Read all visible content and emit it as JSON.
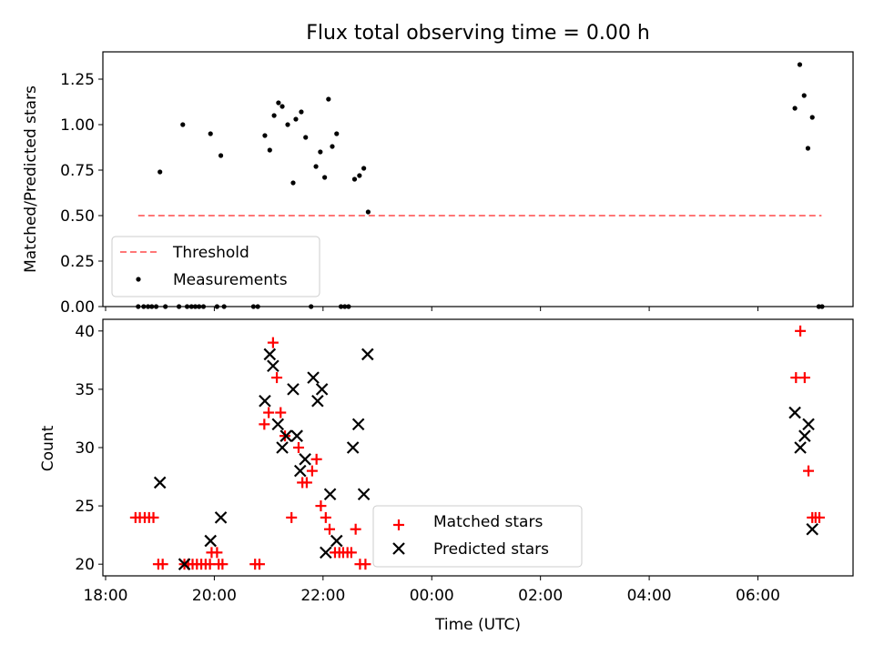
{
  "chart_data": [
    {
      "type": "scatter",
      "title": "Flux total observing time = 0.00 h",
      "ylabel": "Matched/Predicted stars",
      "xlabel": "",
      "xlim_hours": [
        17.95,
        31.75
      ],
      "ylim": [
        0,
        1.4
      ],
      "yticks": [
        0.0,
        0.25,
        0.5,
        0.75,
        1.0,
        1.25
      ],
      "ytick_labels": [
        "0.00",
        "0.25",
        "0.50",
        "0.75",
        "1.00",
        "1.25"
      ],
      "legend_position": "lower-left",
      "legend": {
        "threshold_label": "Threshold",
        "measurements_label": "Measurements"
      },
      "threshold": {
        "value": 0.5,
        "x_start": 18.6,
        "x_end": 31.17,
        "color": "#ff7777"
      },
      "series": [
        {
          "name": "Measurements",
          "color": "#000000",
          "points": [
            [
              18.6,
              0
            ],
            [
              18.7,
              0
            ],
            [
              18.78,
              0
            ],
            [
              18.85,
              0
            ],
            [
              18.93,
              0
            ],
            [
              19.0,
              0.74
            ],
            [
              19.1,
              0
            ],
            [
              19.35,
              0
            ],
            [
              19.42,
              1.0
            ],
            [
              19.5,
              0
            ],
            [
              19.58,
              0
            ],
            [
              19.65,
              0
            ],
            [
              19.72,
              0
            ],
            [
              19.8,
              0
            ],
            [
              19.93,
              0.95
            ],
            [
              20.05,
              0
            ],
            [
              20.12,
              0.83
            ],
            [
              20.18,
              0
            ],
            [
              20.72,
              0
            ],
            [
              20.8,
              0
            ],
            [
              20.93,
              0.94
            ],
            [
              21.02,
              0.86
            ],
            [
              21.1,
              1.05
            ],
            [
              21.18,
              1.12
            ],
            [
              21.25,
              1.1
            ],
            [
              21.35,
              1.0
            ],
            [
              21.45,
              0.68
            ],
            [
              21.5,
              1.03
            ],
            [
              21.6,
              1.07
            ],
            [
              21.68,
              0.93
            ],
            [
              21.78,
              0
            ],
            [
              21.87,
              0.77
            ],
            [
              21.95,
              0.85
            ],
            [
              22.03,
              0.71
            ],
            [
              22.1,
              1.14
            ],
            [
              22.17,
              0.88
            ],
            [
              22.25,
              0.95
            ],
            [
              22.33,
              0
            ],
            [
              22.4,
              0
            ],
            [
              22.47,
              0
            ],
            [
              22.58,
              0.7
            ],
            [
              22.67,
              0.72
            ],
            [
              22.75,
              0.76
            ],
            [
              22.83,
              0.52
            ],
            [
              30.68,
              1.09
            ],
            [
              30.77,
              1.33
            ],
            [
              30.85,
              1.16
            ],
            [
              30.92,
              0.87
            ],
            [
              31.0,
              1.04
            ],
            [
              31.12,
              0
            ],
            [
              31.18,
              0
            ]
          ]
        }
      ]
    },
    {
      "type": "scatter",
      "title": "",
      "ylabel": "Count",
      "xlabel": "Time (UTC)",
      "xlim_hours": [
        17.95,
        31.75
      ],
      "ylim": [
        19,
        41
      ],
      "yticks": [
        20,
        25,
        30,
        35,
        40
      ],
      "ytick_labels": [
        "20",
        "25",
        "30",
        "35",
        "40"
      ],
      "xticks_hours": [
        18,
        20,
        22,
        24,
        26,
        28,
        30
      ],
      "xtick_labels": [
        "18:00",
        "20:00",
        "22:00",
        "00:00",
        "02:00",
        "04:00",
        "06:00"
      ],
      "legend_position": "lower-center",
      "series": [
        {
          "name": "Matched stars",
          "marker": "plus",
          "color": "#ff0000",
          "points": [
            [
              18.55,
              24
            ],
            [
              18.63,
              24
            ],
            [
              18.72,
              24
            ],
            [
              18.8,
              24
            ],
            [
              18.88,
              24
            ],
            [
              18.97,
              20
            ],
            [
              19.05,
              20
            ],
            [
              19.45,
              20
            ],
            [
              19.52,
              20
            ],
            [
              19.6,
              20
            ],
            [
              19.68,
              20
            ],
            [
              19.76,
              20
            ],
            [
              19.84,
              20
            ],
            [
              19.92,
              20
            ],
            [
              19.95,
              21
            ],
            [
              20.05,
              21
            ],
            [
              20.08,
              20
            ],
            [
              20.15,
              20
            ],
            [
              20.75,
              20
            ],
            [
              20.83,
              20
            ],
            [
              20.92,
              32
            ],
            [
              21.0,
              33
            ],
            [
              21.08,
              39
            ],
            [
              21.15,
              36
            ],
            [
              21.22,
              33
            ],
            [
              21.3,
              31
            ],
            [
              21.42,
              24
            ],
            [
              21.55,
              30
            ],
            [
              21.62,
              27
            ],
            [
              21.7,
              27
            ],
            [
              21.8,
              28
            ],
            [
              21.88,
              29
            ],
            [
              21.96,
              25
            ],
            [
              22.05,
              24
            ],
            [
              22.12,
              23
            ],
            [
              22.22,
              21
            ],
            [
              22.3,
              21
            ],
            [
              22.37,
              21
            ],
            [
              22.45,
              21
            ],
            [
              22.52,
              21
            ],
            [
              22.6,
              23
            ],
            [
              22.68,
              20
            ],
            [
              22.78,
              20
            ],
            [
              30.7,
              36
            ],
            [
              30.78,
              40
            ],
            [
              30.86,
              36
            ],
            [
              30.93,
              28
            ],
            [
              31.0,
              24
            ],
            [
              31.06,
              24
            ],
            [
              31.13,
              24
            ]
          ]
        },
        {
          "name": "Predicted stars",
          "marker": "x",
          "color": "#000000",
          "points": [
            [
              19.0,
              27
            ],
            [
              19.45,
              20
            ],
            [
              19.93,
              22
            ],
            [
              20.12,
              24
            ],
            [
              20.93,
              34
            ],
            [
              21.02,
              38
            ],
            [
              21.08,
              37
            ],
            [
              21.17,
              32
            ],
            [
              21.25,
              30
            ],
            [
              21.32,
              31
            ],
            [
              21.45,
              35
            ],
            [
              21.52,
              31
            ],
            [
              21.58,
              28
            ],
            [
              21.67,
              29
            ],
            [
              21.82,
              36
            ],
            [
              21.9,
              34
            ],
            [
              21.98,
              35
            ],
            [
              22.05,
              21
            ],
            [
              22.13,
              26
            ],
            [
              22.25,
              22
            ],
            [
              22.55,
              30
            ],
            [
              22.65,
              32
            ],
            [
              22.75,
              26
            ],
            [
              22.82,
              38
            ],
            [
              30.68,
              33
            ],
            [
              30.78,
              30
            ],
            [
              30.86,
              31
            ],
            [
              30.93,
              32
            ],
            [
              31.0,
              23
            ]
          ]
        }
      ]
    }
  ]
}
